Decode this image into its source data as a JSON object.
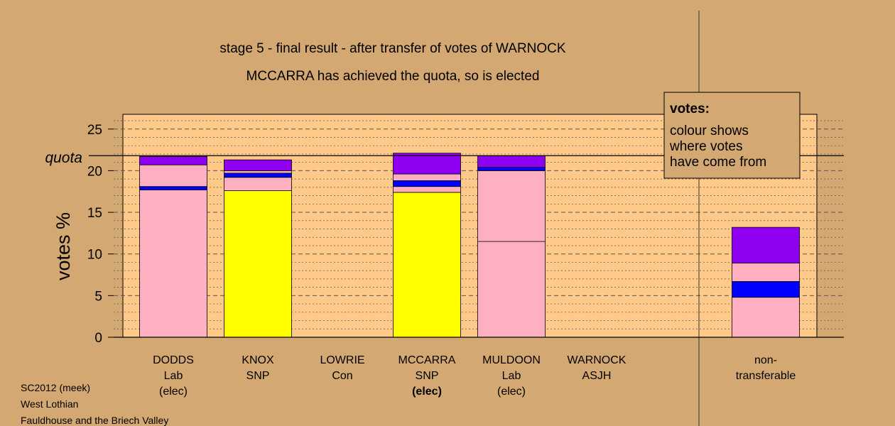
{
  "chart_data": {
    "type": "bar",
    "stacked": true,
    "title": "stage 5 - final result - after transfer of votes of WARNOCK",
    "subtitle": "MCCARRA has achieved the quota, so is elected",
    "ylabel": "votes %",
    "ylim": [
      0,
      26.5
    ],
    "yticks": [
      "0",
      "5",
      "10",
      "15",
      "20",
      "25"
    ],
    "quota": {
      "label": "quota",
      "value": 21.8
    },
    "grid": true,
    "categories": [
      {
        "lines": [
          "DODDS",
          "Lab",
          "(elec)"
        ],
        "bold_line": -1
      },
      {
        "lines": [
          "KNOX",
          "SNP"
        ],
        "bold_line": -1
      },
      {
        "lines": [
          "LOWRIE",
          "Con"
        ],
        "bold_line": -1
      },
      {
        "lines": [
          "MCCARRA",
          "SNP",
          "(elec)"
        ],
        "bold_line": 2
      },
      {
        "lines": [
          "MULDOON",
          "Lab",
          "(elec)"
        ],
        "bold_line": -1
      },
      {
        "lines": [
          "WARNOCK",
          "ASJH"
        ],
        "bold_line": -1
      },
      {
        "lines": [
          "non-",
          "transferable"
        ],
        "bold_line": -1
      }
    ],
    "bars": [
      [
        {
          "value": 17.7,
          "color": "#ffb0c0"
        },
        {
          "value": 0.4,
          "color": "#0000ff"
        },
        {
          "value": 2.6,
          "color": "#ffb0c0"
        },
        {
          "value": 1.0,
          "color": "#9000f0"
        }
      ],
      [
        {
          "value": 17.6,
          "color": "#ffff00"
        },
        {
          "value": 1.6,
          "color": "#ffb0c0"
        },
        {
          "value": 0.5,
          "color": "#0000ff"
        },
        {
          "value": 0.3,
          "color": "#ffb0c0"
        },
        {
          "value": 1.3,
          "color": "#9000f0"
        }
      ],
      [],
      [
        {
          "value": 17.4,
          "color": "#ffff00"
        },
        {
          "value": 0.7,
          "color": "#ffb0c0"
        },
        {
          "value": 0.7,
          "color": "#0000ff"
        },
        {
          "value": 0.8,
          "color": "#ffb0c0"
        },
        {
          "value": 2.5,
          "color": "#9000f0"
        }
      ],
      [
        {
          "value": 11.5,
          "color": "#ffb0c0"
        },
        {
          "value": 8.5,
          "color": "#ffb0c0"
        },
        {
          "value": 0.4,
          "color": "#0000ff"
        },
        {
          "value": 1.4,
          "color": "#9000f0"
        }
      ],
      [],
      [
        {
          "value": 4.8,
          "color": "#ffb0c0"
        },
        {
          "value": 1.9,
          "color": "#0000ff"
        },
        {
          "value": 2.2,
          "color": "#ffb0c0"
        },
        {
          "value": 4.3,
          "color": "#9000f0"
        }
      ]
    ],
    "legend": {
      "heading": "votes:",
      "lines": [
        "colour shows",
        "where votes",
        "have come from"
      ],
      "placement": "top-right"
    }
  },
  "footer": [
    "SC2012 (meek)",
    "West Lothian",
    "Fauldhouse and the Briech Valley"
  ],
  "colors": {
    "background": "#d4a872",
    "plot_background": "#ffc98a",
    "grid": "#555555"
  }
}
